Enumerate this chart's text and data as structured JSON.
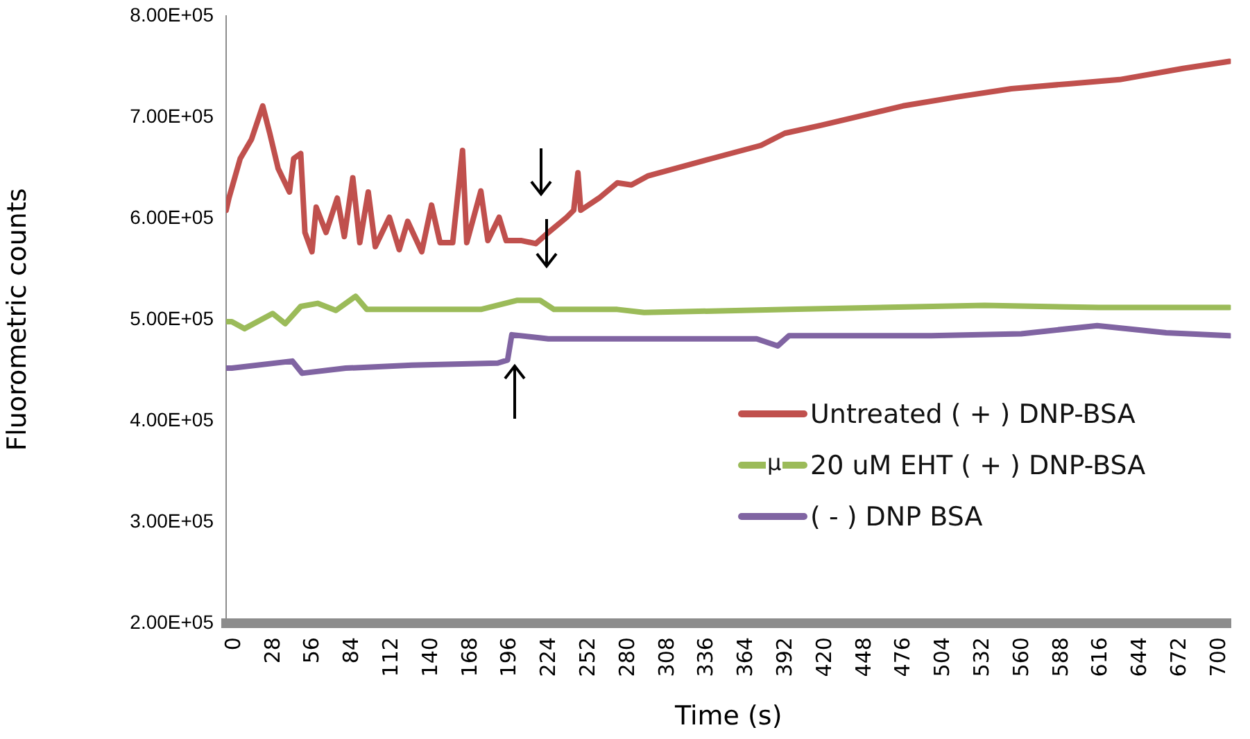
{
  "chart_data": {
    "type": "line",
    "xlabel": "Time (s)",
    "ylabel": "Fluorometric counts",
    "xlim": [
      0,
      714
    ],
    "xticks": [
      0,
      28,
      56,
      84,
      112,
      140,
      168,
      196,
      224,
      252,
      280,
      308,
      336,
      364,
      392,
      420,
      448,
      476,
      504,
      532,
      560,
      588,
      616,
      644,
      672,
      700
    ],
    "ylim": [
      200000,
      800000
    ],
    "yticks": [
      {
        "value": 200000,
        "label": "2.00E+05"
      },
      {
        "value": 300000,
        "label": "3.00E+05"
      },
      {
        "value": 400000,
        "label": "4.00E+05"
      },
      {
        "value": 500000,
        "label": "5.00E+05"
      },
      {
        "value": 600000,
        "label": "6.00E+05"
      },
      {
        "value": 700000,
        "label": "7.00E+05"
      },
      {
        "value": 800000,
        "label": "8.00E+05"
      }
    ],
    "grid": false,
    "legend": "right",
    "marker": "none",
    "line_style": "solid",
    "annotations": [
      "µ"
    ],
    "series": [
      {
        "name": "Untreated ( + ) DNP-BSA",
        "color": "#c0504d",
        "x": [
          0,
          2,
          10,
          18,
          26,
          31,
          37,
          45,
          48,
          53,
          56,
          61,
          64,
          71,
          79,
          84,
          90,
          95,
          101,
          106,
          116,
          123,
          129,
          139,
          146,
          152,
          161,
          168,
          171,
          181,
          186,
          194,
          199,
          210,
          220,
          229,
          242,
          247,
          250,
          252,
          265,
          278,
          288,
          300,
          345,
          380,
          397,
          423,
          481,
          520,
          558,
          600,
          635,
          680,
          713
        ],
        "values": [
          608000,
          620000,
          659000,
          678000,
          711000,
          684000,
          649000,
          626000,
          659000,
          664000,
          586000,
          567000,
          611000,
          586000,
          620000,
          582000,
          640000,
          576000,
          626000,
          572000,
          601000,
          569000,
          597000,
          567000,
          613000,
          576000,
          576000,
          667000,
          576000,
          627000,
          578000,
          601000,
          578000,
          578000,
          575000,
          586000,
          601000,
          608000,
          645000,
          608000,
          620000,
          635000,
          633000,
          642000,
          659000,
          672000,
          684000,
          692000,
          711000,
          720000,
          728000,
          733000,
          737000,
          748000,
          755000
        ]
      },
      {
        "name": "20 uM EHT ( + ) DNP-BSA",
        "color": "#9bbb59",
        "x": [
          0,
          4,
          13,
          33,
          42,
          53,
          65,
          78,
          92,
          100,
          132,
          181,
          207,
          223,
          233,
          278,
          297,
          400,
          539,
          620,
          713
        ],
        "values": [
          498000,
          498000,
          491000,
          506000,
          496000,
          513000,
          516000,
          509000,
          523000,
          510000,
          510000,
          510000,
          519000,
          519000,
          510000,
          510000,
          507000,
          510000,
          514000,
          512000,
          512000
        ]
      },
      {
        "name": "( - ) DNP BSA",
        "color": "#8064a2",
        "x": [
          0,
          4,
          47,
          54,
          85,
          132,
          193,
          200,
          203,
          229,
          249,
          278,
          377,
          392,
          400,
          501,
          565,
          619,
          668,
          713
        ],
        "values": [
          452000,
          452000,
          459000,
          447000,
          452000,
          455000,
          457000,
          460000,
          485000,
          481000,
          481000,
          481000,
          481000,
          474000,
          484000,
          484000,
          486000,
          494000,
          487000,
          484000
        ]
      }
    ]
  }
}
